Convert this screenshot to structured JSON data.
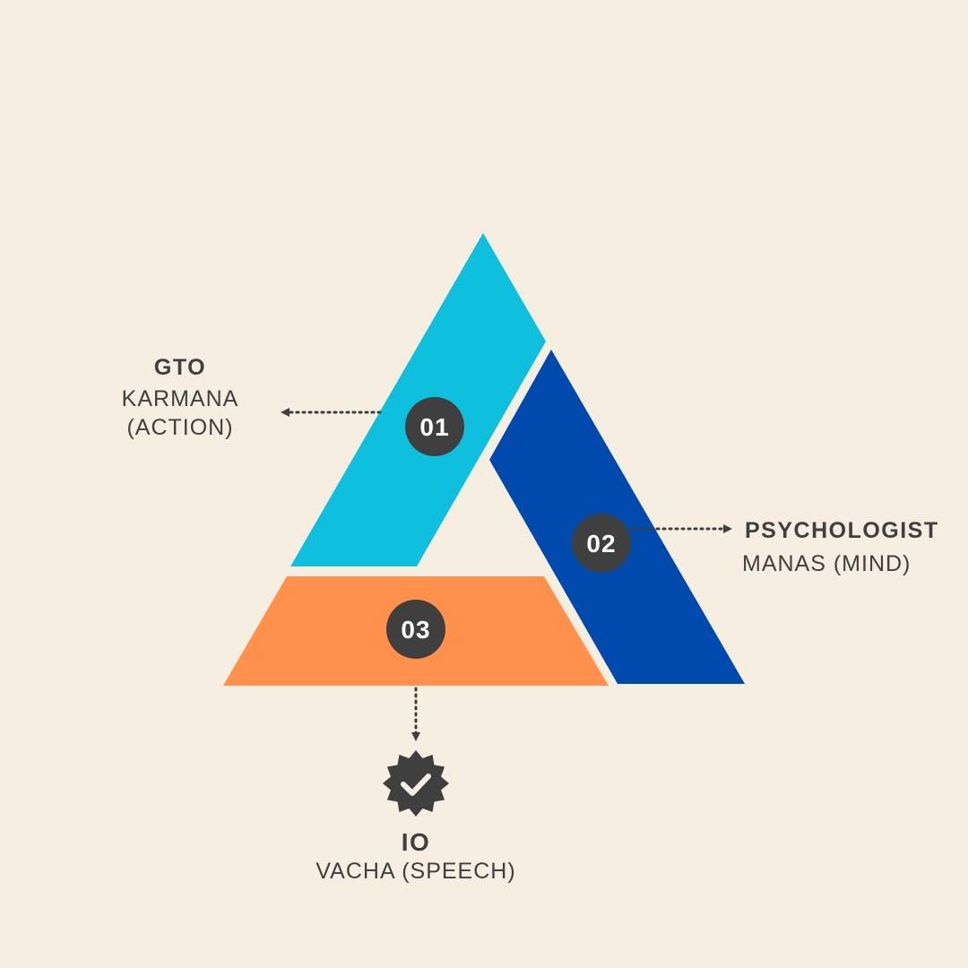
{
  "colors": {
    "background": "#f6efe1",
    "segment_01": "#0ec0de",
    "segment_02": "#004aad",
    "segment_03": "#ff914d",
    "badge": "#3f3f3f",
    "text": "#3f3f3f"
  },
  "segments": [
    {
      "number": "01",
      "title": "GTO",
      "subtitle_line1": "KARMANA",
      "subtitle_line2": "(ACTION)"
    },
    {
      "number": "02",
      "title": "PSYCHOLOGIST",
      "subtitle_line1": "MANAS (MIND)"
    },
    {
      "number": "03",
      "title": "IO",
      "subtitle_line1": "VACHA  (SPEECH)",
      "icon": "verified-badge-icon"
    }
  ]
}
